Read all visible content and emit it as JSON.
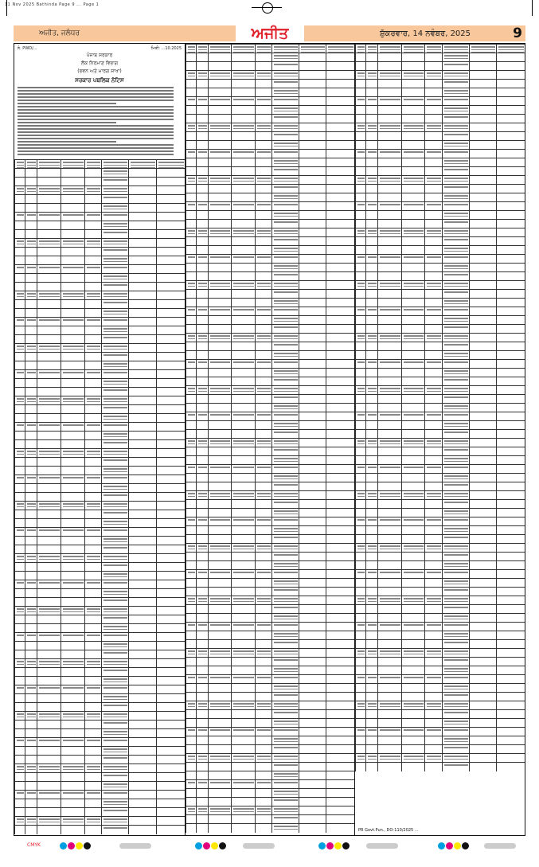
{
  "slug": "11 Nov 2025 Bathinda Page 9 ... Page 1",
  "header": {
    "edition": "ਅਜੀਤ, ਜਲੰਧਰ",
    "logo": "ਅਜੀਤ",
    "date": "ਸ਼ੁੱਕਰਵਾਰ, 14 ਨਵੰਬਰ, 2025",
    "page_number": "9",
    "band_color": "#f8c89c",
    "logo_color": "#e0202a"
  },
  "notice": {
    "ref": "ਨੰ. PWD/...",
    "date": "ਮਿਤੀ: ...10.2025",
    "lines": [
      "ਪੰਜਾਬ ਸਰਕਾਰ",
      "ਲੋਕ ਨਿਰਮਾਣ ਵਿਭਾਗ",
      "(ਭਵਨ ਅਤੇ ਮਾਰਗ ਸ਼ਾਖਾ)"
    ],
    "heading": "ਸਰਕਾਰ ਪਬਲਿਕ ਨੋਟਿਸ"
  },
  "footer": {
    "pr_code": "PR Govt.Pun., DO-110/2025 ..."
  },
  "colorbar": {
    "label": "CMYK",
    "colors": [
      "#00a0e0",
      "#e0007a",
      "#ffe800",
      "#111111"
    ]
  }
}
